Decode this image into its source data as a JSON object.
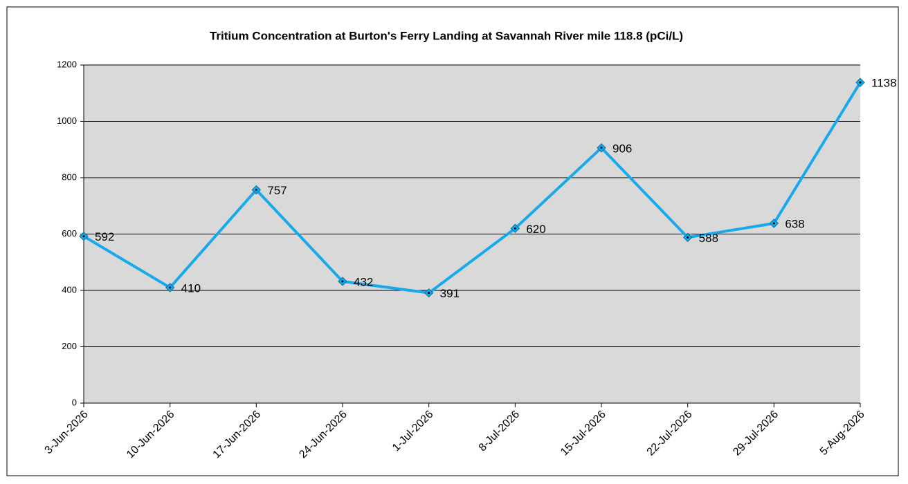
{
  "chart_data": {
    "type": "line",
    "title": "Tritium Concentration at Burton's Ferry Landing at Savannah River mile 118.8 (pCi/L)",
    "categories": [
      "3-Jun-2026",
      "10-Jun-2026",
      "17-Jun-2026",
      "24-Jun-2026",
      "1-Jul-2026",
      "8-Jul-2026",
      "15-Jul-2026",
      "22-Jul-2026",
      "29-Jul-2026",
      "5-Aug-2026"
    ],
    "values": [
      592,
      410,
      757,
      432,
      391,
      620,
      906,
      588,
      638,
      1138
    ],
    "color": "#16aaec",
    "ylim": [
      0,
      1200
    ],
    "yticks": [
      0,
      200,
      400,
      600,
      800,
      1000,
      1200
    ],
    "grid": true
  }
}
